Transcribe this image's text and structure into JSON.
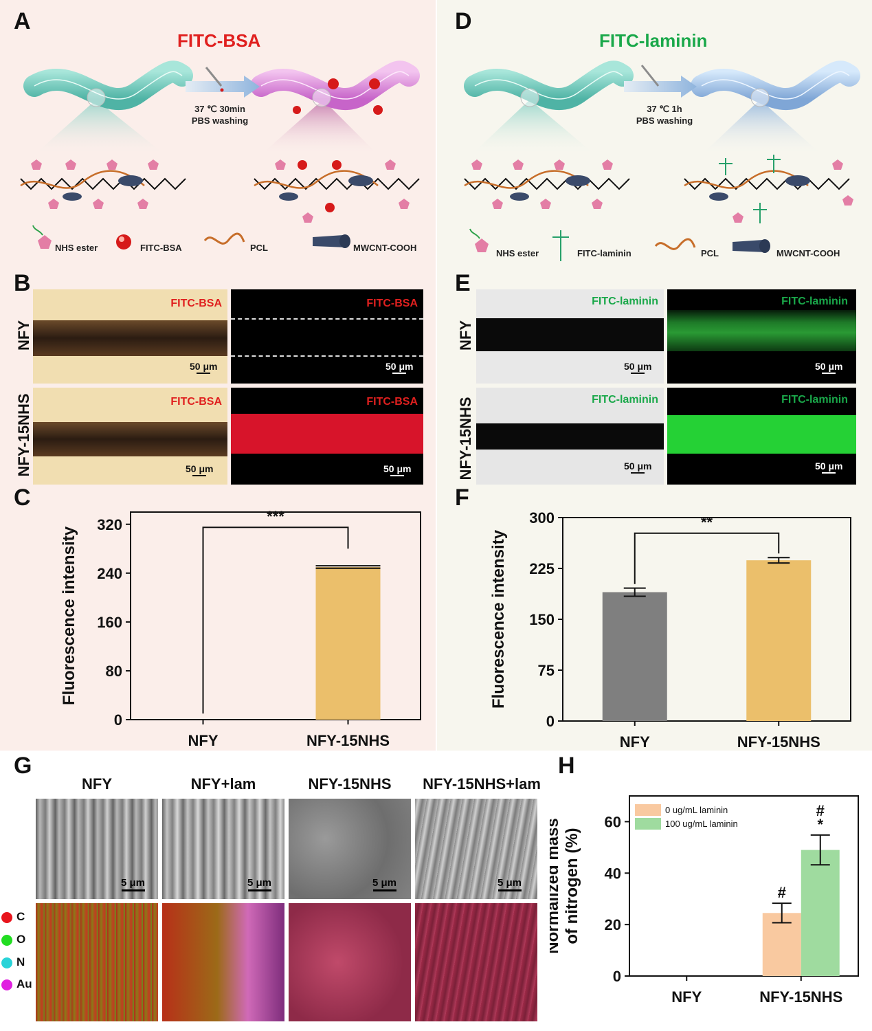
{
  "panel_labels": {
    "A": "A",
    "B": "B",
    "C": "C",
    "D": "D",
    "E": "E",
    "F": "F",
    "G": "G",
    "H": "H"
  },
  "panelA": {
    "title": "FITC-BSA",
    "title_color": "#e0201f",
    "condition_line1": "37 ℃ 30min",
    "condition_line2": "PBS washing",
    "legend": [
      "NHS ester",
      "FITC-BSA",
      "PCL",
      "MWCNT-COOH"
    ]
  },
  "panelD": {
    "title": "FITC-laminin",
    "title_color": "#1aa84a",
    "condition_line1": "37 ℃ 1h",
    "condition_line2": "PBS washing",
    "legend": [
      "NHS ester",
      "FITC-laminin",
      "PCL",
      "MWCNT-COOH"
    ]
  },
  "panelB": {
    "row_labels": [
      "NFY",
      "NFY-15NHS"
    ],
    "tag": "FITC-BSA",
    "scale": "50 μm"
  },
  "panelE": {
    "row_labels": [
      "NFY",
      "NFY-15NHS"
    ],
    "tag": "FITC-laminin",
    "scale": "50 μm"
  },
  "panelG": {
    "columns": [
      "NFY",
      "NFY+lam",
      "NFY-15NHS",
      "NFY-15NHS+lam"
    ],
    "scale": "5 μm",
    "elements": [
      {
        "label": "C",
        "color": "#e8141c"
      },
      {
        "label": "O",
        "color": "#22dd22"
      },
      {
        "label": "N",
        "color": "#29d3d8"
      },
      {
        "label": "Au",
        "color": "#e020e0"
      }
    ]
  },
  "chart_data": [
    {
      "id": "C",
      "type": "bar",
      "ylabel": "Fluorescence intensity",
      "categories": [
        "NFY",
        "NFY-15NHS"
      ],
      "values": [
        0,
        250
      ],
      "errors": [
        0,
        2
      ],
      "colors": [
        "#7f7f7f",
        "#ebbf6b"
      ],
      "ylim": [
        0,
        340
      ],
      "yticks": [
        0,
        80,
        160,
        240,
        320
      ],
      "significance": "***"
    },
    {
      "id": "F",
      "type": "bar",
      "ylabel": "Fluorescence intensity",
      "categories": [
        "NFY",
        "NFY-15NHS"
      ],
      "values": [
        190,
        237
      ],
      "errors": [
        6,
        4
      ],
      "colors": [
        "#7f7f7f",
        "#ebbf6b"
      ],
      "ylim": [
        0,
        300
      ],
      "yticks": [
        0,
        75,
        150,
        225,
        300
      ],
      "significance": "**"
    },
    {
      "id": "H",
      "type": "bar",
      "ylabel": [
        "Normalized mass",
        "of nitrogen (%)"
      ],
      "categories": [
        "NFY",
        "NFY-15NHS"
      ],
      "series": [
        {
          "name": "0 ug/mL laminin",
          "values": [
            0,
            24.5
          ],
          "errors": [
            0,
            3.8
          ],
          "color": "#f9c9a0",
          "markers": [
            "",
            "#"
          ]
        },
        {
          "name": "100 ug/mL laminin",
          "values": [
            0,
            49
          ],
          "errors": [
            0,
            5.8
          ],
          "color": "#9fdb9f",
          "markers": [
            "",
            "#\n*"
          ]
        }
      ],
      "ylim": [
        0,
        70
      ],
      "yticks": [
        0,
        20,
        40,
        60
      ]
    }
  ]
}
